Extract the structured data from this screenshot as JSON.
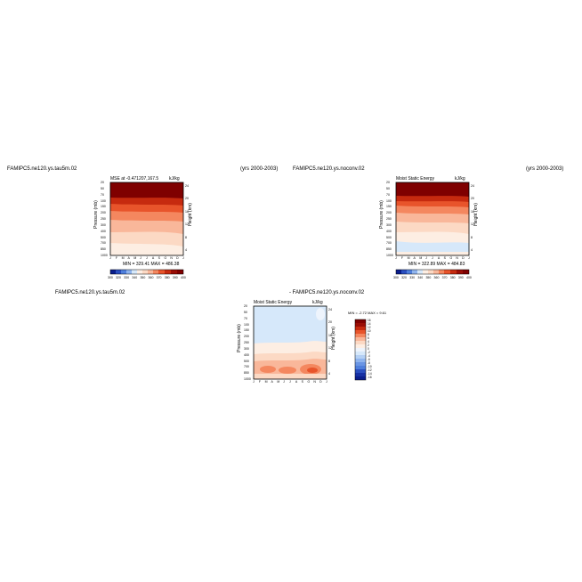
{
  "colors": {
    "dark_red": "#7f0000",
    "red": "#c62a0f",
    "orange_red": "#e8542b",
    "orange": "#f4875f",
    "salmon": "#f9b79a",
    "peach": "#fcd9c4",
    "cream": "#fdeee3",
    "light_blue": "#d6e8fa",
    "blue": "#4f7fdc",
    "navy": "#0a1e8c"
  },
  "chart_data": [
    {
      "type": "heatmap",
      "title_left": "FAMIPC5.ne120.ys.tau5m.02",
      "title_right": "(yrs 2000-2003)",
      "subtitle_left": "MSE at -0.471207,167.5",
      "units": "kJ/kg",
      "ylabel": "Pressure (mb)",
      "ylabel_right": "Height (km)",
      "x_ticks": [
        "J",
        "F",
        "M",
        "A",
        "M",
        "J",
        "J",
        "A",
        "S",
        "O",
        "N",
        "D",
        "J"
      ],
      "p_ticks": [
        "20",
        "50",
        "70",
        "100",
        "150",
        "200",
        "250",
        "300",
        "400",
        "500",
        "700",
        "850",
        "1000"
      ],
      "h_ticks": [
        "24",
        "20",
        "16",
        "12",
        "8",
        "4"
      ],
      "min_max_label": "MIN = 329.41  MAX = 486.38",
      "colorbar_labels": [
        "300",
        "320",
        "330",
        "340",
        "350",
        "360",
        "370",
        "380",
        "390",
        "400"
      ]
    },
    {
      "type": "heatmap",
      "title_left": "FAMIPC5.ne120.ys.noconv.02",
      "title_right": "(yrs 2000-2003)",
      "subtitle_left": "Moist Static Energy",
      "units": "kJ/kg",
      "ylabel": "Pressure (mb)",
      "ylabel_right": "Height (km)",
      "x_ticks": [
        "J",
        "F",
        "M",
        "A",
        "M",
        "J",
        "J",
        "A",
        "S",
        "O",
        "N",
        "D",
        "J"
      ],
      "p_ticks": [
        "20",
        "50",
        "70",
        "100",
        "150",
        "200",
        "250",
        "300",
        "400",
        "500",
        "700",
        "850",
        "1000"
      ],
      "h_ticks": [
        "24",
        "20",
        "16",
        "12",
        "8",
        "4"
      ],
      "min_max_label": "MIN = 322.89  MAX = 484.83",
      "colorbar_labels": [
        "300",
        "320",
        "330",
        "340",
        "350",
        "360",
        "370",
        "380",
        "390",
        "400"
      ]
    },
    {
      "type": "heatmap",
      "title_left": "FAMIPC5.ne120.ys.tau5m.02",
      "title_center": "- FAMIPC5.ne120.ys.noconv.02",
      "subtitle_left": "Moist Static Energy",
      "units": "kJ/kg",
      "ylabel": "Pressure (mb)",
      "ylabel_right": "Height (km)",
      "x_ticks": [
        "J",
        "F",
        "M",
        "A",
        "M",
        "J",
        "J",
        "A",
        "S",
        "O",
        "N",
        "D",
        "J"
      ],
      "p_ticks": [
        "20",
        "50",
        "70",
        "100",
        "150",
        "200",
        "250",
        "300",
        "400",
        "500",
        "700",
        "850",
        "1000"
      ],
      "h_ticks": [
        "24",
        "20",
        "16",
        "12",
        "8",
        "4"
      ],
      "min_max_label": "MIN = -2.72  MAX = 9.61",
      "colorbar_labels": [
        "16",
        "14",
        "12",
        "10",
        "8",
        "6",
        "4",
        "2",
        "0",
        "-2",
        "-4",
        "-6",
        "-8",
        "-10",
        "-12",
        "-14",
        "-16"
      ]
    }
  ]
}
